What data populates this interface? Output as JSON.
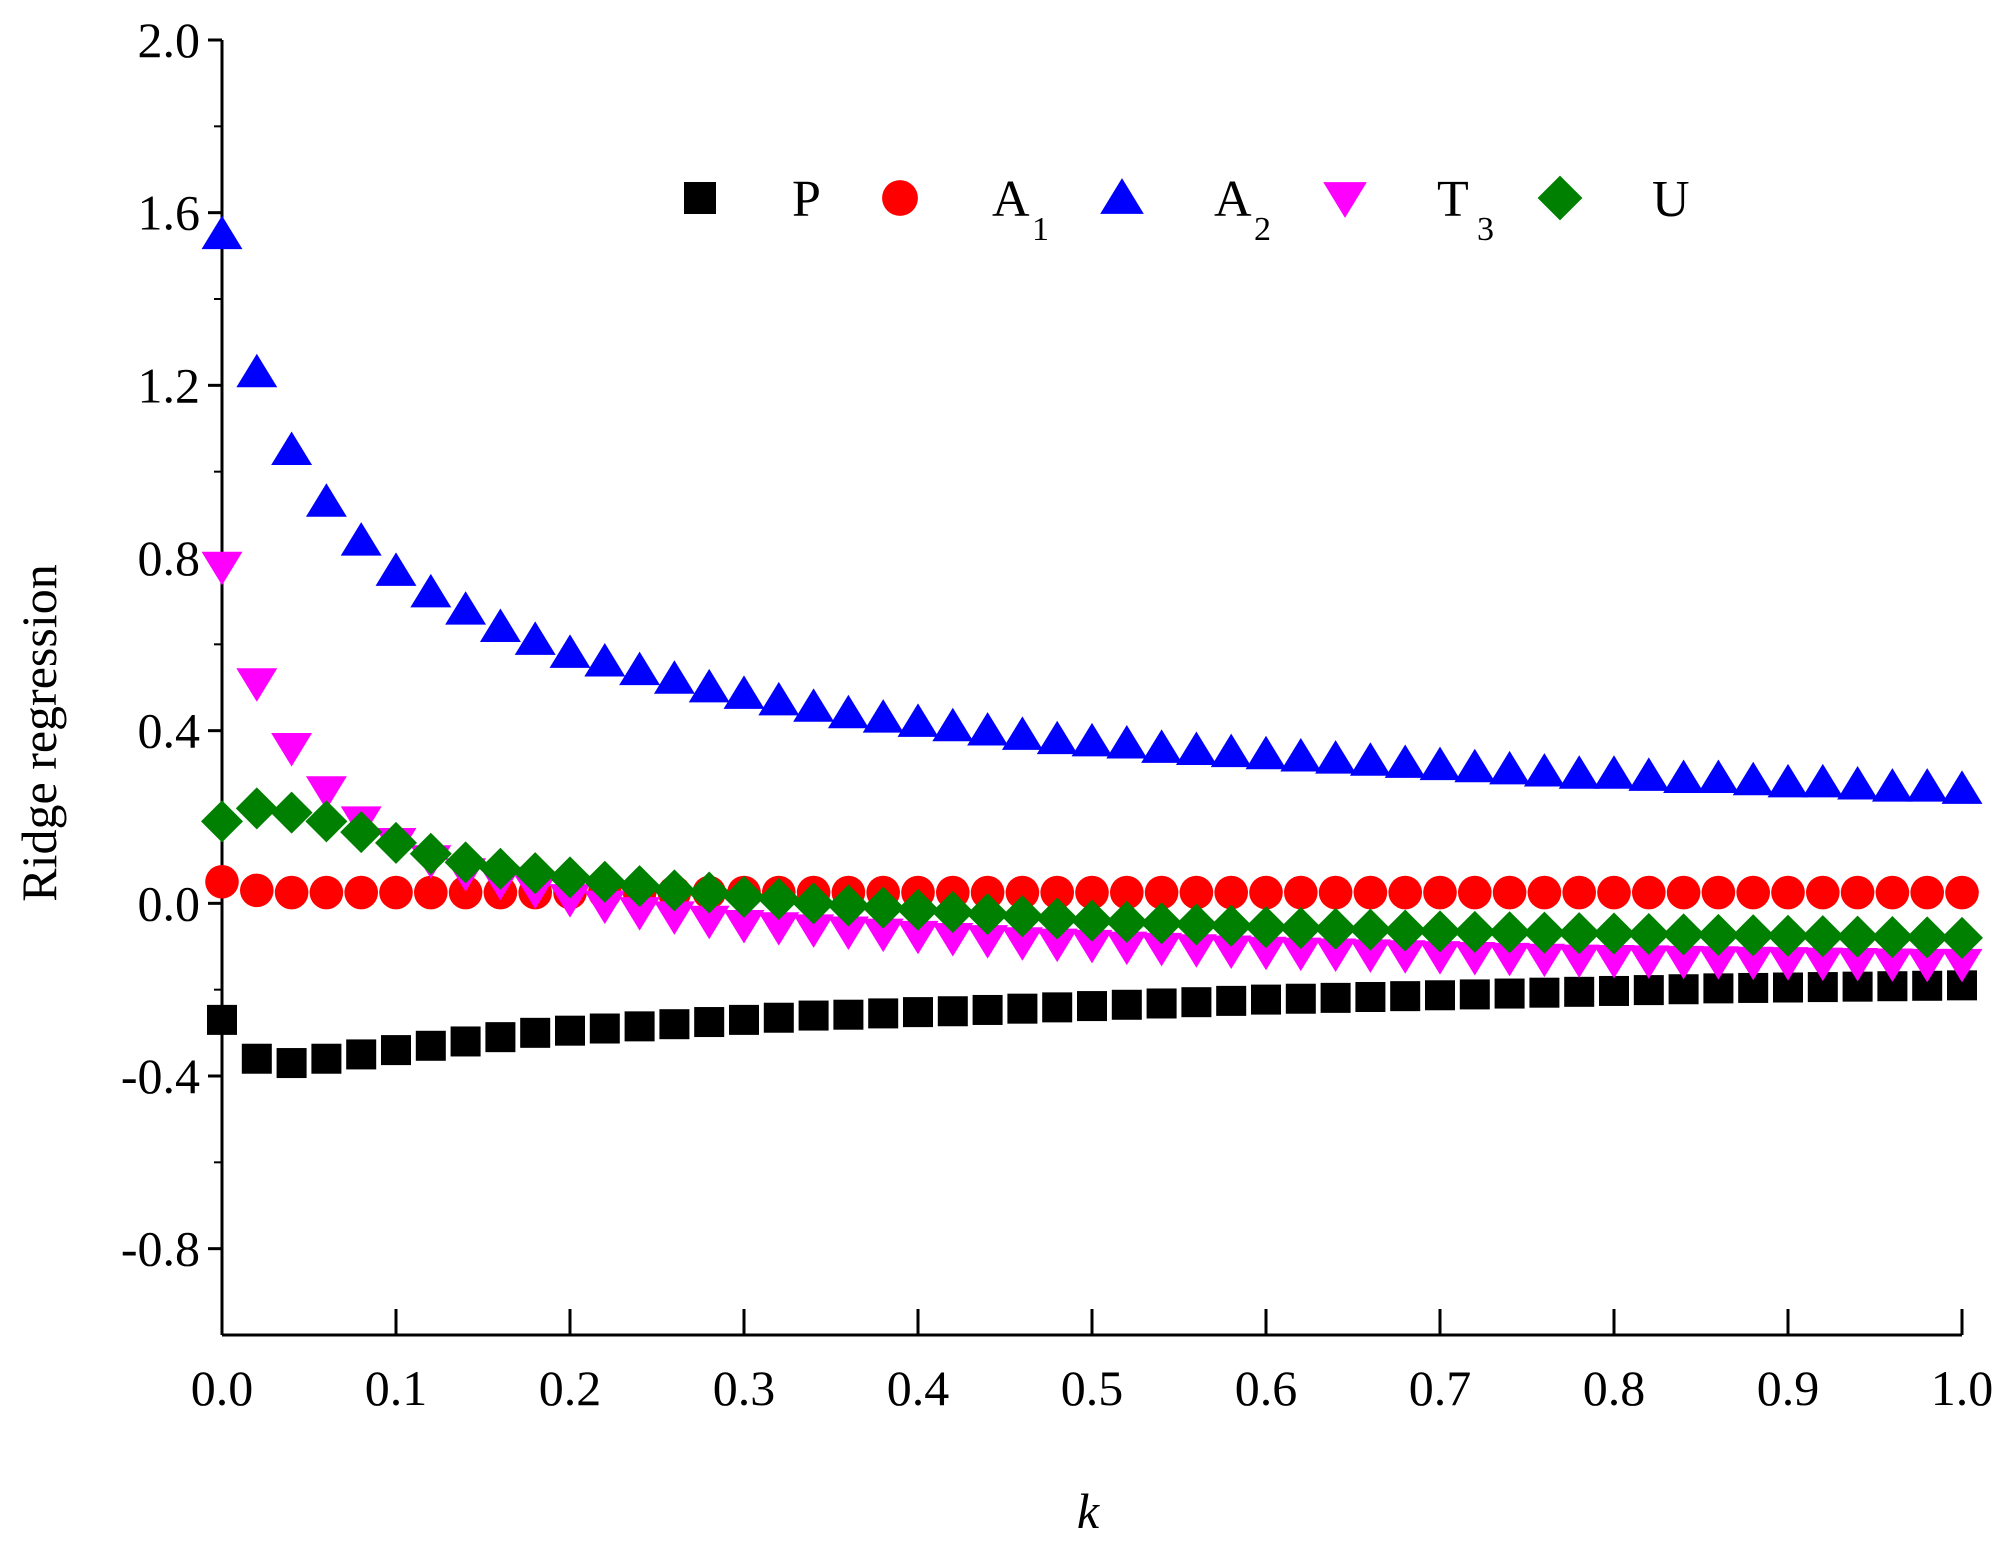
{
  "chart_data": {
    "type": "scatter",
    "title": "",
    "xlabel": "k",
    "ylabel": "Ridge regression",
    "xlim": [
      0.0,
      1.0
    ],
    "ylim": [
      -1.0,
      2.0
    ],
    "x_ticks": [
      "0.0",
      "0.1",
      "0.2",
      "0.3",
      "0.4",
      "0.5",
      "0.6",
      "0.7",
      "0.8",
      "0.9",
      "1.0"
    ],
    "y_ticks": [
      "-0.8",
      "-0.4",
      "0.0",
      "0.4",
      "0.8",
      "1.2",
      "1.6",
      "2.0"
    ],
    "legend_position": "top",
    "x": [
      0.0,
      0.02,
      0.04,
      0.06,
      0.08,
      0.1,
      0.12,
      0.14,
      0.16,
      0.18,
      0.2,
      0.22,
      0.24,
      0.26,
      0.28,
      0.3,
      0.32,
      0.34,
      0.36,
      0.38,
      0.4,
      0.42,
      0.44,
      0.46,
      0.48,
      0.5,
      0.52,
      0.54,
      0.56,
      0.58,
      0.6,
      0.62,
      0.64,
      0.66,
      0.68,
      0.7,
      0.72,
      0.74,
      0.76,
      0.78,
      0.8,
      0.82,
      0.84,
      0.86,
      0.88,
      0.9,
      0.92,
      0.94,
      0.96,
      0.98,
      1.0
    ],
    "series": [
      {
        "name": "P",
        "subscript": "",
        "marker": "square",
        "color": "#000000",
        "values": [
          -0.27,
          -0.36,
          -0.37,
          -0.36,
          -0.35,
          -0.34,
          -0.33,
          -0.32,
          -0.31,
          -0.3,
          -0.295,
          -0.29,
          -0.285,
          -0.28,
          -0.275,
          -0.27,
          -0.265,
          -0.26,
          -0.258,
          -0.255,
          -0.252,
          -0.25,
          -0.247,
          -0.244,
          -0.241,
          -0.238,
          -0.235,
          -0.232,
          -0.229,
          -0.226,
          -0.223,
          -0.221,
          -0.219,
          -0.217,
          -0.215,
          -0.213,
          -0.211,
          -0.209,
          -0.207,
          -0.205,
          -0.203,
          -0.201,
          -0.199,
          -0.197,
          -0.196,
          -0.195,
          -0.194,
          -0.193,
          -0.192,
          -0.191,
          -0.19
        ]
      },
      {
        "name": "A",
        "subscript": "1",
        "marker": "circle",
        "color": "#ff0000",
        "values": [
          0.05,
          0.03,
          0.025,
          0.025,
          0.025,
          0.025,
          0.025,
          0.025,
          0.025,
          0.025,
          0.025,
          0.025,
          0.025,
          0.025,
          0.025,
          0.025,
          0.025,
          0.025,
          0.025,
          0.025,
          0.025,
          0.025,
          0.025,
          0.025,
          0.025,
          0.025,
          0.025,
          0.025,
          0.025,
          0.025,
          0.025,
          0.025,
          0.025,
          0.025,
          0.025,
          0.025,
          0.025,
          0.025,
          0.025,
          0.025,
          0.025,
          0.025,
          0.025,
          0.025,
          0.025,
          0.025,
          0.025,
          0.025,
          0.025,
          0.025,
          0.025
        ]
      },
      {
        "name": "A",
        "subscript": "2",
        "marker": "triangle-up",
        "color": "#0000ff",
        "values": [
          1.55,
          1.23,
          1.05,
          0.93,
          0.84,
          0.77,
          0.72,
          0.68,
          0.64,
          0.61,
          0.58,
          0.56,
          0.54,
          0.52,
          0.5,
          0.485,
          0.47,
          0.455,
          0.44,
          0.43,
          0.42,
          0.41,
          0.4,
          0.39,
          0.38,
          0.375,
          0.37,
          0.36,
          0.355,
          0.35,
          0.345,
          0.34,
          0.335,
          0.33,
          0.325,
          0.32,
          0.315,
          0.31,
          0.305,
          0.3,
          0.3,
          0.295,
          0.29,
          0.29,
          0.285,
          0.28,
          0.28,
          0.275,
          0.27,
          0.27,
          0.265
        ]
      },
      {
        "name": "T",
        "subscript": "3",
        "marker": "triangle-down",
        "color": "#ff00ff",
        "values": [
          0.78,
          0.51,
          0.36,
          0.26,
          0.19,
          0.14,
          0.1,
          0.07,
          0.05,
          0.03,
          0.01,
          -0.005,
          -0.02,
          -0.03,
          -0.04,
          -0.05,
          -0.055,
          -0.06,
          -0.065,
          -0.07,
          -0.075,
          -0.08,
          -0.085,
          -0.09,
          -0.093,
          -0.096,
          -0.1,
          -0.103,
          -0.106,
          -0.109,
          -0.112,
          -0.114,
          -0.116,
          -0.118,
          -0.12,
          -0.122,
          -0.124,
          -0.126,
          -0.128,
          -0.13,
          -0.131,
          -0.132,
          -0.133,
          -0.134,
          -0.135,
          -0.136,
          -0.137,
          -0.138,
          -0.139,
          -0.14,
          -0.14
        ]
      },
      {
        "name": "U",
        "subscript": "",
        "marker": "diamond",
        "color": "#008000",
        "values": [
          0.19,
          0.22,
          0.21,
          0.19,
          0.165,
          0.14,
          0.115,
          0.095,
          0.08,
          0.07,
          0.06,
          0.05,
          0.04,
          0.03,
          0.025,
          0.015,
          0.01,
          0.0,
          -0.005,
          -0.01,
          -0.015,
          -0.02,
          -0.025,
          -0.03,
          -0.035,
          -0.04,
          -0.043,
          -0.046,
          -0.049,
          -0.052,
          -0.055,
          -0.057,
          -0.059,
          -0.061,
          -0.063,
          -0.065,
          -0.066,
          -0.067,
          -0.068,
          -0.069,
          -0.07,
          -0.071,
          -0.072,
          -0.073,
          -0.074,
          -0.075,
          -0.076,
          -0.077,
          -0.078,
          -0.079,
          -0.08
        ]
      }
    ]
  }
}
